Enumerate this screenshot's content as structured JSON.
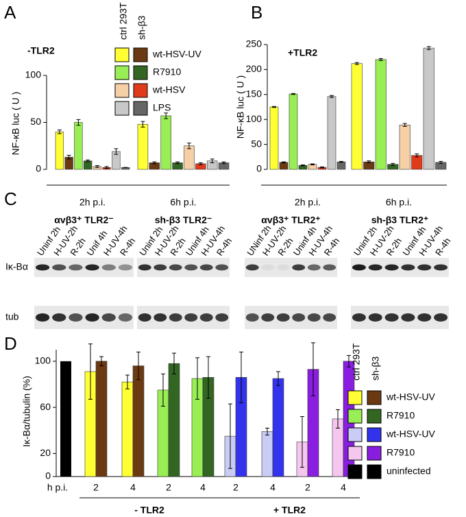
{
  "chart_data": [
    {
      "type": "bar",
      "label": "A",
      "title": "-TLR2",
      "ylabel": "NF-κB luc ( U )",
      "categories": [
        "2h p.i.",
        "6h p.i."
      ],
      "ylim": [
        0,
        100
      ],
      "yticks": [
        0,
        50,
        100
      ],
      "series": [
        {
          "color": "#ffff33",
          "values": [
            40,
            48
          ],
          "errors": [
            2,
            3
          ]
        },
        {
          "color": "#6b3a12",
          "values": [
            13,
            7
          ],
          "errors": [
            2,
            1
          ]
        },
        {
          "color": "#99ee55",
          "values": [
            50,
            57
          ],
          "errors": [
            3,
            3
          ]
        },
        {
          "color": "#336622",
          "values": [
            9,
            7
          ],
          "errors": [
            1,
            1
          ]
        },
        {
          "color": "#f5cfa5",
          "values": [
            3,
            25
          ],
          "errors": [
            1,
            3
          ]
        },
        {
          "color": "#e03a1a",
          "values": [
            2,
            6
          ],
          "errors": [
            1,
            1
          ]
        },
        {
          "color": "#c8c8c8",
          "values": [
            19,
            9
          ],
          "errors": [
            3,
            2
          ]
        },
        {
          "color": "#666666",
          "values": [
            2,
            7
          ],
          "errors": [
            0,
            1
          ]
        }
      ],
      "legend": {
        "columns": [
          "ctrl 293T",
          "sh-β3"
        ],
        "rows": [
          "wt-HSV-UV",
          "R7910",
          "wt-HSV",
          "LPS"
        ]
      }
    },
    {
      "type": "bar",
      "label": "B",
      "title": "+TLR2",
      "ylabel": "NF-κB luc ( U )",
      "categories": [
        "2h p.i.",
        "6h p.i."
      ],
      "ylim": [
        0,
        250
      ],
      "yticks": [
        0,
        50,
        100,
        150,
        200,
        250
      ],
      "series": [
        {
          "color": "#ffff33",
          "values": [
            125,
            212
          ],
          "errors": [
            1,
            2
          ]
        },
        {
          "color": "#6b3a12",
          "values": [
            14,
            15
          ],
          "errors": [
            1,
            2
          ]
        },
        {
          "color": "#99ee55",
          "values": [
            151,
            220
          ],
          "errors": [
            1,
            2
          ]
        },
        {
          "color": "#336622",
          "values": [
            8,
            10
          ],
          "errors": [
            1,
            2
          ]
        },
        {
          "color": "#f5cfa5",
          "values": [
            10,
            89
          ],
          "errors": [
            1,
            3
          ]
        },
        {
          "color": "#e03a1a",
          "values": [
            4,
            28
          ],
          "errors": [
            1,
            3
          ]
        },
        {
          "color": "#c8c8c8",
          "values": [
            146,
            243
          ],
          "errors": [
            2,
            3
          ]
        },
        {
          "color": "#666666",
          "values": [
            15,
            14
          ],
          "errors": [
            1,
            2
          ]
        }
      ]
    },
    {
      "type": "paired-bar",
      "label": "D",
      "ylabel": "Iκ-Bα/tubulin (%)",
      "xlabel": "h p.i.",
      "categories": [
        "2",
        "4",
        "2",
        "4",
        "2",
        "4",
        "2",
        "4"
      ],
      "groups": [
        "- TLR2",
        "+ TLR2"
      ],
      "ylim": [
        0,
        110
      ],
      "yticks": [
        0,
        20,
        60,
        100
      ],
      "control": {
        "value": 100,
        "color": "#000000"
      },
      "series": [
        {
          "values": [
            91,
            82,
            75,
            85,
            35,
            39,
            30,
            50
          ],
          "errors": [
            24,
            6,
            14,
            18,
            28,
            3,
            22,
            8
          ],
          "colors": [
            "#ffff33",
            "#ffff33",
            "#99ee55",
            "#99ee55",
            "#c9ccf5",
            "#c9ccf5",
            "#f5c6ee",
            "#f5c6ee"
          ]
        },
        {
          "values": [
            100,
            96,
            98,
            86,
            86,
            85,
            93,
            100
          ],
          "errors": [
            4,
            12,
            9,
            18,
            22,
            6,
            23,
            5
          ],
          "colors": [
            "#6b3a12",
            "#6b3a12",
            "#336622",
            "#336622",
            "#3333ee",
            "#3333ee",
            "#8a1ee0",
            "#8a1ee0"
          ]
        }
      ],
      "legend": {
        "columns": [
          "ctrl 293T",
          "sh-β3"
        ],
        "rows": [
          "wt-HSV-UV",
          "R7910",
          "wt-HSV-UV",
          "R7910",
          "uninfected"
        ]
      }
    }
  ],
  "blot": {
    "label": "C",
    "rows": [
      "Iκ-Bα",
      "tub"
    ],
    "groups": [
      {
        "title": "αvβ3⁺ TLR2⁻",
        "lanes": [
          "Uninf 2h",
          "H-UV-2h",
          "R-2h",
          "Unif 4h",
          "H-UV-4h",
          "R-4h"
        ]
      },
      {
        "title": "sh-β3 TLR2⁻",
        "lanes": [
          "Uninf 2h",
          "H-UV-2h",
          "R-2h",
          "Uninf 4h",
          "H-UV-4h",
          "R-4h"
        ]
      },
      {
        "title": "αvβ3⁺ TLR2⁺",
        "lanes": [
          "UNinf 2h",
          "H-UV-2h",
          "R-2h",
          "Uninf 4h",
          "H-UV-4h",
          "R-4h"
        ]
      },
      {
        "title": "sh-β3 TLR2⁺",
        "lanes": [
          "Uninf 2h",
          "H-UV-2h",
          "R-2h",
          "Uninf 4h",
          "H-UV-4h",
          "R-4h"
        ]
      }
    ]
  }
}
